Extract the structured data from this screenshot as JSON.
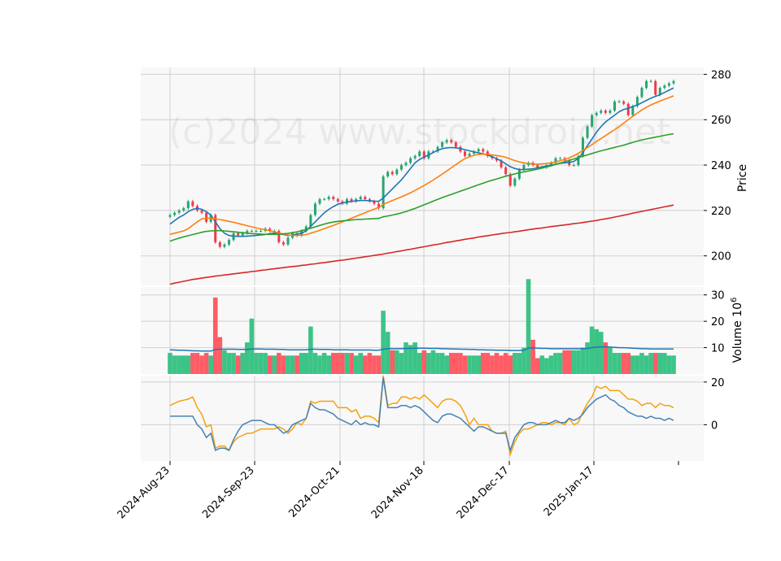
{
  "chart_data": {
    "type": "candlestick",
    "watermark": "(c)2024 www.stockdroid.net",
    "x_ticks": [
      "2024-Aug-23",
      "2024-Sep-23",
      "2024-Oct-21",
      "2024-Nov-18",
      "2024-Dec-17",
      "2025-Jan-17"
    ],
    "colors": {
      "up": "#26a66e",
      "down": "#ef3b4a",
      "vol_up": "#3cc487",
      "vol_down": "#ff5c66",
      "ma1": "#1f77b4",
      "ma2": "#ff7f0e",
      "ma3": "#2ca02c",
      "ma4": "#d62728",
      "osc_fast": "#f5a10f",
      "osc_slow": "#4682b4"
    },
    "price_panel": {
      "ylabel": "Price",
      "ylim": [
        187,
        283
      ],
      "yticks": [
        200,
        220,
        240,
        260,
        280
      ],
      "close": [
        218,
        219,
        220,
        221,
        224,
        222,
        220,
        219,
        215,
        218,
        206,
        204,
        205,
        207,
        210,
        209,
        210,
        211,
        211,
        211,
        211,
        212,
        211,
        211,
        206,
        205,
        208,
        210,
        209,
        211,
        213,
        218,
        223,
        225,
        225,
        226,
        225,
        224,
        223,
        225,
        224,
        225,
        226,
        225,
        224,
        223,
        221,
        235,
        237,
        236,
        238,
        240,
        241,
        243,
        244,
        246,
        243,
        246,
        246,
        248,
        250,
        251,
        250,
        248,
        246,
        244,
        245,
        246,
        247,
        246,
        244,
        243,
        242,
        239,
        236,
        231,
        234,
        238,
        240,
        241,
        240,
        239,
        239,
        240,
        241,
        243,
        243,
        242,
        240,
        240,
        244,
        252,
        257,
        262,
        263,
        264,
        263,
        264,
        268,
        268,
        267,
        262,
        266,
        270,
        274,
        277,
        277,
        271,
        274,
        275,
        276,
        277
      ],
      "ma": [
        {
          "values": [
            214,
            215.5,
            217,
            218,
            219.5,
            220.5,
            221,
            220.5,
            219.5,
            218,
            215,
            212,
            210,
            209,
            208.7,
            208.6,
            208.6,
            208.7,
            208.8,
            209,
            209.2,
            209.4,
            209.8,
            210,
            209.8,
            209.4,
            209,
            209.2,
            209.6,
            210,
            211,
            213,
            215,
            217,
            219,
            220.5,
            221.7,
            222.7,
            223.3,
            223.7,
            224,
            224.2,
            224.4,
            224.4,
            224.3,
            224.1,
            224,
            225.5,
            227.5,
            229.5,
            231.5,
            233.5,
            236,
            238.5,
            241,
            242.5,
            243.5,
            244.5,
            245.5,
            246.5,
            247.2,
            247.6,
            247.7,
            247.6,
            247.3,
            246.8,
            246.3,
            245.8,
            245.4,
            245,
            244.4,
            243.7,
            242.8,
            241.8,
            240.6,
            239.3,
            238.5,
            238,
            238,
            238.2,
            238.4,
            238.8,
            239.2,
            239.6,
            240,
            240.4,
            240.8,
            241,
            241.2,
            241.6,
            243,
            245.5,
            248.5,
            251.5,
            254.5,
            257,
            259,
            260.5,
            262,
            263.5,
            264.5,
            265,
            265.8,
            266.5,
            267.5,
            268.5,
            269.5,
            270.3,
            271,
            272,
            273,
            274
          ]
        },
        {
          "values": [
            209.5,
            210,
            210.5,
            211,
            212,
            213.5,
            215,
            216.3,
            216.7,
            216.6,
            216.3,
            216,
            215.6,
            215.2,
            214.8,
            214.3,
            213.8,
            213.3,
            212.8,
            212.3,
            211.9,
            211.5,
            211.1,
            210.6,
            210.1,
            209.6,
            209.2,
            209,
            209,
            209.1,
            209.4,
            210,
            210.6,
            211.3,
            212,
            212.7,
            213.4,
            214.2,
            215,
            215.8,
            216.6,
            217.4,
            218.2,
            219,
            219.8,
            220.6,
            221.4,
            222.6,
            223.6,
            224.4,
            225.2,
            226,
            226.9,
            227.8,
            228.8,
            229.9,
            231,
            232.2,
            233.4,
            234.7,
            236,
            237.4,
            238.8,
            240.2,
            241.6,
            242.8,
            243.7,
            244.3,
            244.7,
            244.8,
            244.7,
            244.5,
            244.2,
            243.9,
            243.4,
            242.7,
            242,
            241.4,
            241,
            240.7,
            240.5,
            240.4,
            240.5,
            240.7,
            241,
            241.4,
            241.9,
            242.5,
            243.2,
            244.1,
            245.2,
            246.4,
            247.7,
            249,
            250.4,
            251.7,
            253,
            254.3,
            255.6,
            257,
            258.5,
            260,
            261.5,
            262.9,
            264.3,
            265.5,
            266.5,
            267.4,
            268.2,
            269,
            269.7,
            270.5
          ]
        },
        {
          "values": [
            206.5,
            207.2,
            207.8,
            208.4,
            208.9,
            209.4,
            209.9,
            210.4,
            210.8,
            211,
            211.1,
            211.1,
            211,
            210.8,
            210.6,
            210.4,
            210.2,
            210,
            209.8,
            209.7,
            209.6,
            209.5,
            209.5,
            209.5,
            209.6,
            209.7,
            209.9,
            210.2,
            210.6,
            211.1,
            211.6,
            212.2,
            212.8,
            213.4,
            214,
            214.5,
            214.9,
            215.2,
            215.4,
            215.6,
            215.8,
            216,
            216.1,
            216.2,
            216.3,
            216.4,
            216.5,
            217.2,
            217.6,
            218,
            218.4,
            218.9,
            219.5,
            220.2,
            220.9,
            221.7,
            222.5,
            223.3,
            224.1,
            224.9,
            225.7,
            226.4,
            227.1,
            227.8,
            228.5,
            229.2,
            229.9,
            230.6,
            231.3,
            232,
            232.7,
            233.3,
            233.9,
            234.5,
            235.1,
            235.6,
            236.1,
            236.6,
            237,
            237.4,
            237.8,
            238.2,
            238.7,
            239.2,
            239.7,
            240.3,
            240.9,
            241.5,
            242.1,
            242.7,
            243.3,
            243.9,
            244.5,
            245.1,
            245.7,
            246.3,
            246.8,
            247.3,
            247.8,
            248.3,
            248.8,
            249.4,
            250,
            250.6,
            251.1,
            251.5,
            251.9,
            252.3,
            252.7,
            253.1,
            253.5,
            253.8
          ]
        },
        {
          "values": [
            187.5,
            188,
            188.4,
            188.8,
            189.2,
            189.6,
            189.9,
            190.2,
            190.5,
            190.8,
            191.1,
            191.3,
            191.6,
            191.8,
            192.1,
            192.3,
            192.6,
            192.8,
            193.1,
            193.3,
            193.6,
            193.8,
            194.1,
            194.3,
            194.6,
            194.8,
            195.1,
            195.3,
            195.5,
            195.8,
            196,
            196.3,
            196.5,
            196.8,
            197,
            197.3,
            197.6,
            197.9,
            198.1,
            198.4,
            198.7,
            199,
            199.3,
            199.6,
            199.9,
            200.2,
            200.5,
            200.8,
            201.2,
            201.5,
            201.9,
            202.2,
            202.6,
            202.9,
            203.3,
            203.7,
            204,
            204.4,
            204.8,
            205.1,
            205.5,
            205.9,
            206.2,
            206.6,
            206.9,
            207.3,
            207.6,
            207.9,
            208.3,
            208.6,
            208.9,
            209.2,
            209.5,
            209.8,
            210.1,
            210.3,
            210.6,
            210.9,
            211.2,
            211.5,
            211.8,
            212.1,
            212.3,
            212.6,
            212.9,
            213.1,
            213.4,
            213.6,
            213.9,
            214.2,
            214.4,
            214.7,
            215,
            215.3,
            215.6,
            216,
            216.3,
            216.7,
            217.1,
            217.5,
            217.9,
            218.3,
            218.8,
            219.2,
            219.6,
            220,
            220.4,
            220.8,
            221.2,
            221.6,
            222,
            222.4
          ]
        }
      ]
    },
    "volume_panel": {
      "ylabel": "Volume  10",
      "ylabel_exponent": "6",
      "ylim": [
        0,
        33
      ],
      "yticks": [
        10,
        20,
        30
      ],
      "values": [
        8,
        7,
        7,
        7,
        7,
        8,
        8,
        7,
        8,
        7,
        29,
        14,
        9,
        8,
        8,
        7,
        8,
        12,
        21,
        8,
        8,
        8,
        7,
        7,
        8,
        7,
        7,
        7,
        7,
        8,
        8,
        18,
        8,
        7,
        8,
        7,
        8,
        8,
        8,
        8,
        8,
        7,
        8,
        7,
        8,
        7,
        7,
        24,
        16,
        9,
        9,
        8,
        12,
        11,
        12,
        8,
        9,
        8,
        9,
        8,
        8,
        7,
        8,
        8,
        8,
        7,
        7,
        7,
        7,
        8,
        8,
        7,
        8,
        7,
        8,
        7,
        8,
        8,
        10,
        36,
        13,
        6,
        7,
        6,
        7,
        8,
        8,
        9,
        9,
        9,
        9,
        10,
        12,
        18,
        17,
        16,
        12,
        10,
        8,
        8,
        8,
        8,
        7,
        7,
        8,
        7,
        8,
        8,
        8,
        8,
        7,
        7
      ],
      "avg": [
        9.2,
        9.1,
        9,
        9,
        8.9,
        8.8,
        8.8,
        8.7,
        8.7,
        8.7,
        9.3,
        9.4,
        9.4,
        9.4,
        9.4,
        9.3,
        9.3,
        9.3,
        9.5,
        9.5,
        9.5,
        9.4,
        9.4,
        9.4,
        9.3,
        9.3,
        9.2,
        9.2,
        9.2,
        9.2,
        9.2,
        9.4,
        9.4,
        9.3,
        9.3,
        9.3,
        9.2,
        9.2,
        9.2,
        9.2,
        9.1,
        9.1,
        9.1,
        9.1,
        9.1,
        9,
        9,
        9.4,
        9.6,
        9.6,
        9.6,
        9.6,
        9.7,
        9.7,
        9.8,
        9.8,
        9.8,
        9.7,
        9.7,
        9.7,
        9.6,
        9.6,
        9.5,
        9.5,
        9.4,
        9.4,
        9.3,
        9.3,
        9.2,
        9.2,
        9.1,
        9.1,
        9,
        9,
        9,
        8.9,
        8.9,
        8.9,
        9,
        9.8,
        9.9,
        9.8,
        9.7,
        9.7,
        9.6,
        9.6,
        9.6,
        9.6,
        9.6,
        9.6,
        9.6,
        9.6,
        9.7,
        10,
        10.2,
        10.3,
        10.3,
        10.2,
        10.1,
        10,
        10,
        9.9,
        9.8,
        9.7,
        9.6,
        9.6,
        9.5,
        9.5,
        9.5,
        9.5,
        9.5,
        9.5
      ]
    },
    "oscillator_panel": {
      "ylim": [
        -17,
        23
      ],
      "yticks": [
        0,
        20
      ],
      "fast": [
        9,
        10,
        11,
        11.5,
        12,
        13,
        8,
        5,
        -1,
        0,
        -11,
        -10,
        -10,
        -12,
        -8,
        -6,
        -5,
        -4,
        -4,
        -3,
        -2,
        -2,
        -2,
        -2,
        -1,
        -2,
        -4,
        -2,
        1,
        0,
        3,
        11,
        10,
        11,
        11,
        11,
        11,
        8,
        8,
        8,
        6,
        7,
        3,
        4,
        4,
        3,
        1,
        23,
        9,
        10,
        10,
        13,
        13,
        12,
        13,
        12,
        14,
        12,
        10,
        8,
        11,
        12,
        12,
        11,
        9,
        5,
        0,
        3,
        0,
        0,
        0,
        -3,
        -4,
        -4,
        -3,
        -14,
        -8,
        -4,
        -2,
        -2,
        -1,
        0,
        1,
        1,
        0,
        1,
        1,
        0,
        3,
        0,
        1,
        6,
        10,
        13,
        18,
        17,
        18,
        16,
        16,
        16,
        14,
        12,
        12,
        11,
        9,
        10,
        10,
        8,
        10,
        9,
        9,
        8
      ],
      "slow": [
        4,
        4,
        4,
        4,
        4,
        4,
        0,
        -2,
        -6,
        -4,
        -12,
        -11,
        -11,
        -12,
        -7,
        -3,
        0,
        1,
        2,
        2,
        2,
        1,
        0,
        0,
        -2,
        -4,
        -3,
        0,
        1,
        2,
        3,
        10,
        8,
        7,
        7,
        6,
        5,
        3,
        2,
        1,
        0,
        2,
        0,
        1,
        0,
        0,
        -1,
        22,
        8,
        8,
        8,
        9,
        9,
        8,
        9,
        8,
        6,
        4,
        2,
        1,
        4,
        5,
        5,
        4,
        3,
        1,
        -1,
        -3,
        -1,
        -1,
        -2,
        -3,
        -4,
        -4,
        -4,
        -12,
        -6,
        -3,
        0,
        1,
        1,
        0,
        0,
        0,
        1,
        2,
        1,
        1,
        3,
        2,
        3,
        5,
        8,
        10,
        12,
        13,
        14,
        12,
        11,
        9,
        8,
        6,
        5,
        4,
        4,
        3,
        4,
        3,
        3,
        2,
        3,
        2
      ]
    }
  }
}
